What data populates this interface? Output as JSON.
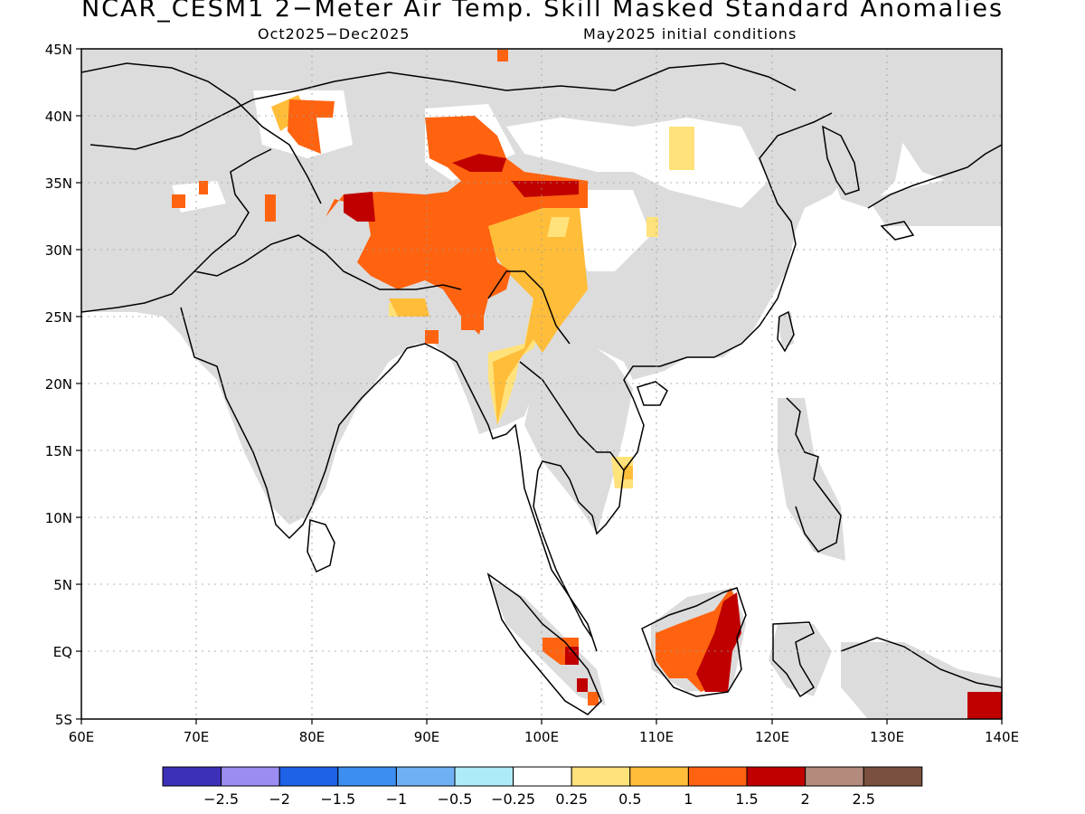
{
  "title": "NCAR_CESM1 2−Meter Air Temp. Skill Masked Standard Anomalies",
  "subtitle_left": "Oct2025−Dec2025",
  "subtitle_right": "May2025 initial conditions",
  "axes": {
    "lat_labels": [
      "45N",
      "40N",
      "35N",
      "30N",
      "25N",
      "20N",
      "15N",
      "10N",
      "5N",
      "EQ",
      "5S"
    ],
    "lon_labels": [
      "60E",
      "70E",
      "80E",
      "90E",
      "100E",
      "110E",
      "120E",
      "130E",
      "140E"
    ]
  },
  "colorbar": {
    "colors": [
      "#3c2fb8",
      "#9b8cf2",
      "#1e62e8",
      "#3c8ef0",
      "#6fb0f5",
      "#aeeaf7",
      "#ffffff",
      "#ffe27a",
      "#ffbd3a",
      "#ff6310",
      "#c00000",
      "#b38a7c",
      "#7a5040"
    ],
    "labels": [
      "−2.5",
      "−2",
      "−1.5",
      "−1",
      "−0.5",
      "−0.25",
      "0.25",
      "0.5",
      "1",
      "1.5",
      "2",
      "2.5"
    ]
  },
  "legend_semantics": {
    "masked_color": "#dcdcdc",
    "coast_color": "#000000"
  }
}
